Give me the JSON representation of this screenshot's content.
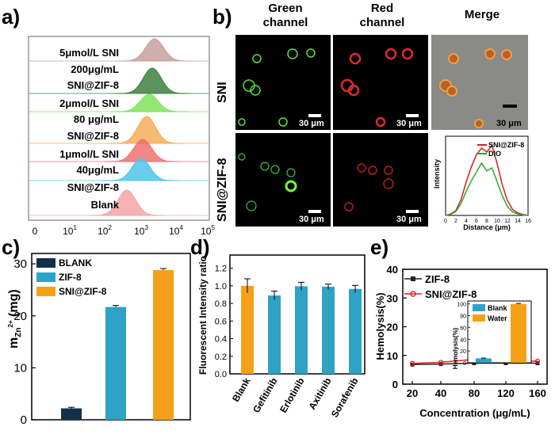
{
  "panels": {
    "a": {
      "label": "a)",
      "rows": [
        "5μmol/L SNI",
        "200μg/mL",
        "SNI@ZIF-8",
        "2μmol/L SNI",
        "80 μg/mL",
        "SNI@ZIF-8",
        "1μmol/L SNI",
        "40μg/mL",
        "SNI@ZIF-8",
        "Blank"
      ],
      "ticks": [
        "0",
        "10",
        "10",
        "10",
        "10",
        "10"
      ],
      "tick_exps": [
        "",
        "1",
        "2",
        "3",
        "4",
        "5"
      ],
      "hist_colors": [
        "#c7a0a0",
        "#3f7f3f",
        "#7fe35a",
        "#f6ad5a",
        "#f07070",
        "#4fc6ea",
        "#f4a4a4"
      ]
    },
    "b": {
      "label": "b)",
      "col_headers": [
        "Green\nchannel",
        "Red\nchannel",
        "Merge"
      ],
      "col_header_lines": [
        [
          "Green",
          "channel"
        ],
        [
          "Red",
          "channel"
        ],
        [
          "Merge"
        ]
      ],
      "row_labels": [
        "SNI",
        "SNI@ZIF-8"
      ],
      "scale_bar": "30 μm",
      "profile": {
        "ylabel": "Intensity",
        "xlabel": "Distance (μm)",
        "xticks": [
          "0",
          "2",
          "4",
          "6",
          "8",
          "10",
          "12",
          "14",
          "16"
        ],
        "legend": [
          "SNI@ZIF-8",
          "DIO"
        ],
        "colors": [
          "#d81e1e",
          "#2ea82e"
        ]
      }
    },
    "c": {
      "label": "c)",
      "ylabel_main": "m",
      "ylabel_sub": "Zn",
      "ylabel_sup": "2+",
      "ylabel_unit": " (mg)",
      "legend": [
        "BLANK",
        "ZIF-8",
        "SNI@ZIF-8"
      ],
      "yticks": [
        "0",
        "10",
        "20",
        "30"
      ],
      "colors": [
        "#13304a",
        "#2ea3c6",
        "#f6a01a"
      ]
    },
    "d": {
      "label": "d)",
      "ylabel": "Fluorescent Intensity ratio",
      "yticks": [
        "0.0",
        "0.2",
        "0.4",
        "0.6",
        "0.8",
        "1.0",
        "1.2"
      ],
      "colors": [
        "#f6a01a",
        "#2ea3c6"
      ]
    },
    "e": {
      "label": "e)",
      "ylabel": "Hemolysis(%)",
      "xlabel": "Concentration (μg/mL)",
      "legend": [
        "ZIF-8",
        "SNI@ZIF-8"
      ],
      "colors": [
        "#222222",
        "#e02020"
      ],
      "yticks": [
        "0",
        "10",
        "20",
        "30",
        "40"
      ],
      "inset": {
        "ylabel": "Hemolysis(%)",
        "yticks": [
          "0",
          "20",
          "40",
          "60",
          "80",
          "100"
        ],
        "legend": [
          "Blank",
          "Water"
        ],
        "colors": [
          "#2ea3c6",
          "#f6a01a"
        ]
      }
    }
  },
  "chart_data": [
    {
      "panel": "c",
      "type": "bar",
      "title": "",
      "ylabel": "mZn2+ (mg)",
      "xlabel": "",
      "ylim": [
        0,
        30
      ],
      "categories": [
        "BLANK",
        "ZIF-8",
        "SNI@ZIF-8"
      ],
      "values": [
        2.2,
        21.7,
        28.8
      ],
      "errors": [
        0.2,
        0.3,
        0.3
      ]
    },
    {
      "panel": "d",
      "type": "bar",
      "title": "",
      "ylabel": "Fluorescent Intensity ratio",
      "xlabel": "",
      "ylim": [
        0,
        1.2
      ],
      "categories": [
        "Blank",
        "Gefitinib",
        "Erlotinib",
        "Axitinib",
        "Sorafenib"
      ],
      "values": [
        1.0,
        0.89,
        0.995,
        0.99,
        0.965
      ],
      "errors": [
        0.08,
        0.05,
        0.045,
        0.03,
        0.04
      ]
    },
    {
      "panel": "e",
      "type": "line",
      "title": "",
      "ylabel": "Hemolysis(%)",
      "xlabel": "Concentration (μg/mL)",
      "ylim": [
        0,
        40
      ],
      "x": [
        20,
        40,
        80,
        120,
        160
      ],
      "xticks": [
        "20",
        "40",
        "80",
        "120",
        "160"
      ],
      "series": [
        {
          "name": "ZIF-8",
          "values": [
            6.8,
            7.0,
            7.3,
            7.3,
            7.3
          ]
        },
        {
          "name": "SNI@ZIF-8",
          "values": [
            7.2,
            7.6,
            8.6,
            8.1,
            8.0
          ]
        }
      ]
    },
    {
      "panel": "e-inset",
      "type": "bar",
      "title": "",
      "ylabel": "Hemolysis(%)",
      "ylim": [
        0,
        100
      ],
      "categories": [
        "Blank",
        "Water"
      ],
      "values": [
        7.5,
        100
      ],
      "errors": [
        0.5,
        0.8
      ]
    },
    {
      "panel": "b-profile",
      "type": "line",
      "title": "",
      "xlabel": "Distance (μm)",
      "ylabel": "Intensity",
      "xlim": [
        0,
        16
      ],
      "x": [
        0,
        1,
        2,
        3,
        4,
        5,
        6,
        7,
        8,
        9,
        10,
        11,
        12,
        13,
        14,
        15,
        16
      ],
      "series": [
        {
          "name": "SNI@ZIF-8",
          "values": [
            0,
            0.3,
            1.0,
            3.2,
            6.8,
            9.8,
            12.3,
            13.6,
            12.8,
            14.2,
            10.5,
            6.2,
            3.0,
            1.2,
            0.5,
            0.2,
            0
          ]
        },
        {
          "name": "DIO",
          "values": [
            0,
            0.2,
            0.8,
            2.4,
            4.9,
            7.0,
            8.8,
            10.6,
            9.0,
            9.6,
            6.8,
            4.0,
            1.8,
            0.7,
            0.3,
            0.1,
            0
          ]
        }
      ]
    }
  ]
}
